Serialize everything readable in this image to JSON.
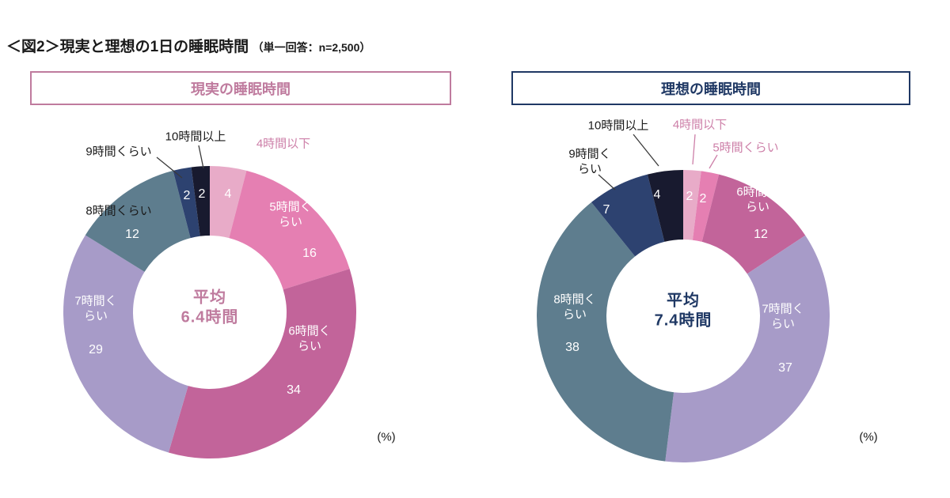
{
  "page": {
    "title": "＜図2＞現実と理想の1日の睡眠時間",
    "title_note": "（単一回答：n=2,500）"
  },
  "theme": {
    "pink_label": "#cd7fa8",
    "text": "#1a1a1a",
    "leader_line": "#3a3a3a"
  },
  "chart_data": [
    {
      "type": "pie",
      "style": "donut",
      "title": "現実の睡眠時間",
      "center_label": [
        "平均",
        "6.4時間"
      ],
      "unit": "(%)",
      "start_angle": "top",
      "direction": "clockwise",
      "accent": "#bf7b9e",
      "categories": [
        "4時間以下",
        "5時間くらい",
        "6時間くらい",
        "7時間くらい",
        "8時間くらい",
        "9時間くらい",
        "10時間以上"
      ],
      "values": [
        4,
        16,
        34,
        29,
        12,
        2,
        2
      ],
      "colors": [
        "#e8abc8",
        "#e57fb2",
        "#c2649a",
        "#a79bc8",
        "#5e7d8e",
        "#2d4270",
        "#181a2f"
      ]
    },
    {
      "type": "pie",
      "style": "donut",
      "title": "理想の睡眠時間",
      "center_label": [
        "平均",
        "7.4時間"
      ],
      "unit": "(%)",
      "start_angle": "top",
      "direction": "clockwise",
      "accent": "#1f3864",
      "categories": [
        "4時間以下",
        "5時間くらい",
        "6時間くらい",
        "7時間くらい",
        "8時間くらい",
        "9時間くらい",
        "10時間以上"
      ],
      "values": [
        2,
        2,
        12,
        37,
        38,
        7,
        4
      ],
      "colors": [
        "#e8abc8",
        "#e57fb2",
        "#c2649a",
        "#a79bc8",
        "#5e7d8e",
        "#2d4270",
        "#181a2f"
      ]
    }
  ]
}
